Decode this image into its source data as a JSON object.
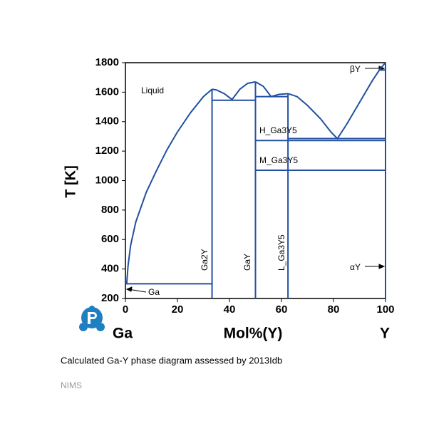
{
  "chart_data": {
    "type": "phase-diagram",
    "caption": "Calculated Ga-Y phase diagram assessed by 2013Idb",
    "source": "NIMS",
    "xlabel": "Mol%(Y)",
    "ylabel": "T [K]",
    "left_component": "Ga",
    "right_component": "Y",
    "xlim": [
      0,
      100
    ],
    "ylim": [
      200,
      1800
    ],
    "xticks": [
      0,
      20,
      40,
      60,
      80,
      100
    ],
    "yticks": [
      200,
      400,
      600,
      800,
      1000,
      1200,
      1400,
      1600,
      1800
    ],
    "color": "#2150a0",
    "annotations": [
      "Liquid",
      "Ga2Y",
      "GaY",
      "L_Ga3Y5",
      "H_Ga3Y5",
      "M_Ga3Y5",
      "βY",
      "αY",
      "Ga"
    ],
    "lines": [
      {
        "x": [
          0.5,
          1,
          2,
          4,
          8,
          12,
          16,
          20,
          25,
          30,
          33.3
        ],
        "y": [
          300,
          420,
          560,
          720,
          920,
          1070,
          1210,
          1330,
          1460,
          1570,
          1620
        ]
      },
      {
        "x": [
          33.3,
          35,
          38,
          41,
          44,
          47,
          50
        ],
        "y": [
          1620,
          1615,
          1590,
          1550,
          1620,
          1660,
          1670
        ]
      },
      {
        "x": [
          50,
          53,
          56,
          59,
          62.5
        ],
        "y": [
          1670,
          1640,
          1570,
          1585,
          1590
        ]
      },
      {
        "x": [
          62.5,
          66,
          70,
          75,
          79,
          81.5,
          85,
          90,
          95,
          98,
          100
        ],
        "y": [
          1590,
          1570,
          1510,
          1420,
          1330,
          1285,
          1380,
          1530,
          1680,
          1760,
          1800
        ]
      },
      {
        "x": [
          0,
          33.3
        ],
        "y": [
          300,
          300
        ]
      },
      {
        "x": [
          33.3,
          50
        ],
        "y": [
          1545,
          1545
        ]
      },
      {
        "x": [
          50,
          62.5
        ],
        "y": [
          1570,
          1570
        ]
      },
      {
        "x": [
          62.5,
          100
        ],
        "y": [
          1285,
          1285
        ]
      },
      {
        "x": [
          50,
          100
        ],
        "y": [
          1272,
          1272
        ]
      },
      {
        "x": [
          50,
          100
        ],
        "y": [
          1070,
          1070
        ]
      },
      {
        "x": [
          98,
          100
        ],
        "y": [
          1750,
          1750
        ]
      },
      {
        "x": [
          33.3,
          33.3
        ],
        "y": [
          200,
          1620
        ]
      },
      {
        "x": [
          50,
          50
        ],
        "y": [
          200,
          1670
        ]
      },
      {
        "x": [
          62.5,
          62.5
        ],
        "y": [
          200,
          1590
        ]
      },
      {
        "x": [
          100,
          100
        ],
        "y": [
          200,
          1800
        ]
      }
    ]
  }
}
